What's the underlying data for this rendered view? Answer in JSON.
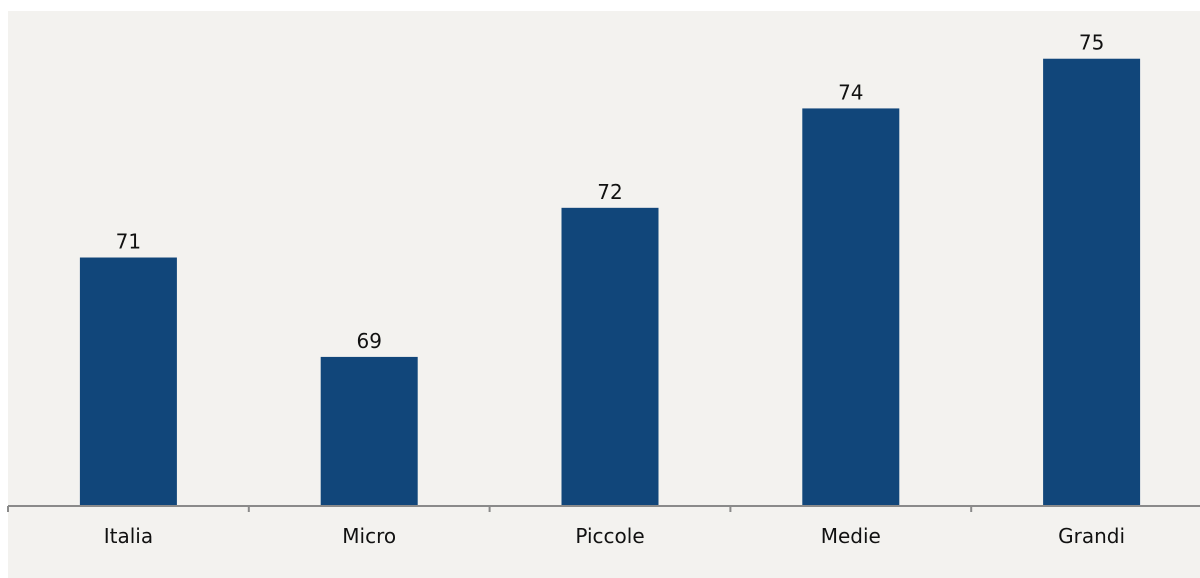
{
  "chart_data": {
    "type": "bar",
    "categories": [
      "Italia",
      "Micro",
      "Piccole",
      "Medie",
      "Grandi"
    ],
    "values": [
      71,
      69,
      72,
      74,
      75
    ],
    "title": "",
    "xlabel": "",
    "ylabel": "",
    "ylim": [
      66,
      75.9
    ],
    "grid": false,
    "legend": "none",
    "bar_color": "#11467a",
    "background_color": "#f3f2ef",
    "data_labels": true
  }
}
